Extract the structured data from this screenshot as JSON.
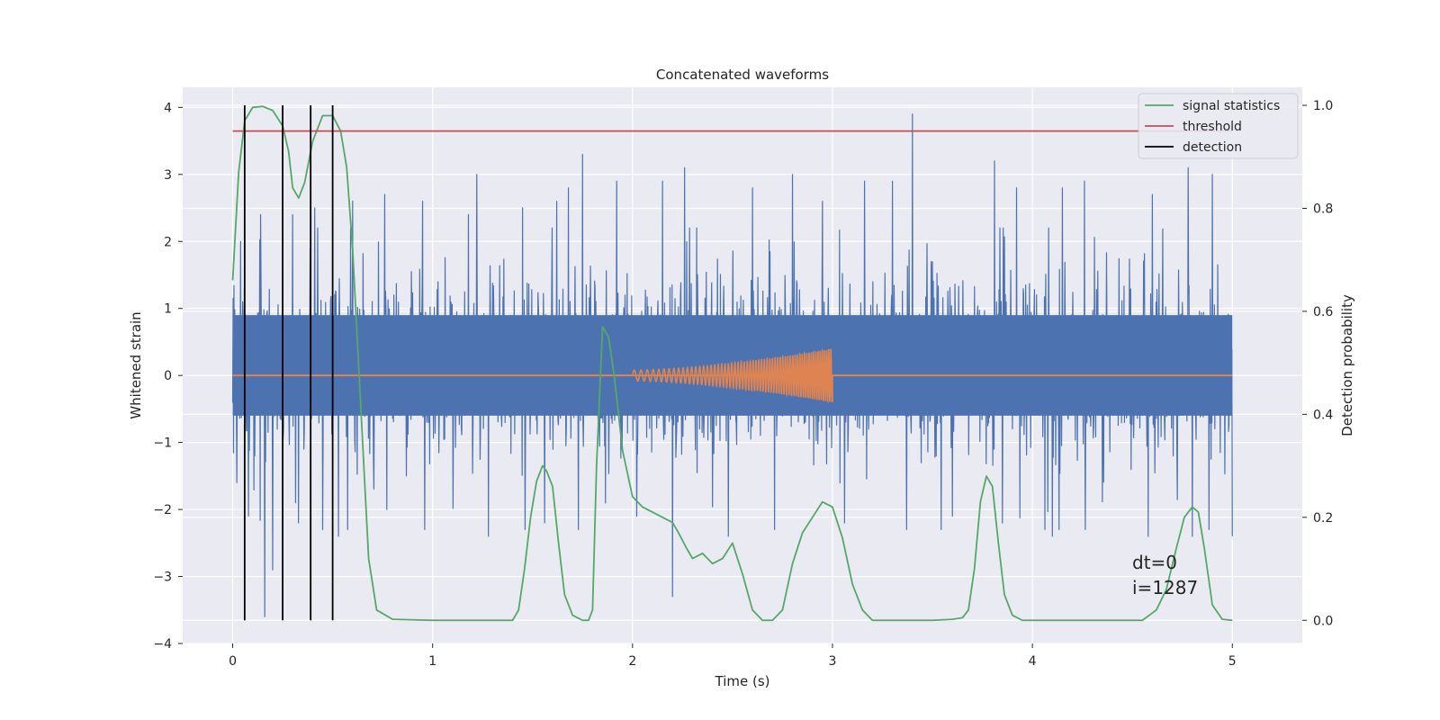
{
  "chart_data": {
    "type": "line",
    "title": "Concatenated waveforms",
    "xlabel": "Time (s)",
    "ylabel": "Whitened strain",
    "y2label": "Detection probability",
    "xlim": [
      -0.25,
      5.35
    ],
    "ylim": [
      -4,
      4.3
    ],
    "y2lim": [
      -0.045,
      1.035
    ],
    "xticks": [
      0,
      1,
      2,
      3,
      4,
      5
    ],
    "yticks": [
      -4,
      -3,
      -2,
      -1,
      0,
      1,
      2,
      3,
      4
    ],
    "y2ticks": [
      0.0,
      0.2,
      0.4,
      0.6,
      0.8,
      1.0
    ],
    "xtick_labels": [
      "0",
      "1",
      "2",
      "3",
      "4",
      "5"
    ],
    "ytick_labels": [
      "−4",
      "−3",
      "−2",
      "−1",
      "0",
      "1",
      "2",
      "3",
      "4"
    ],
    "y2tick_labels": [
      "0.0",
      "0.2",
      "0.4",
      "0.6",
      "0.8",
      "1.0"
    ],
    "grid": true,
    "legend_position": "top-right",
    "legend": [
      "signal statistics",
      "threshold",
      "detection"
    ],
    "colors": {
      "strain": "#4c72b0",
      "waveform": "#dd8452",
      "signal_statistics": "#55a868",
      "threshold": "#c44e52",
      "detection": "#000000",
      "background": "#eaeaf2",
      "grid": "#ffffff"
    },
    "series": [
      {
        "name": "signal statistics",
        "axis": "right",
        "x": [
          0.0,
          0.03,
          0.06,
          0.1,
          0.15,
          0.2,
          0.25,
          0.28,
          0.3,
          0.33,
          0.36,
          0.4,
          0.45,
          0.5,
          0.54,
          0.57,
          0.6,
          0.64,
          0.68,
          0.72,
          0.8,
          1.0,
          1.2,
          1.4,
          1.43,
          1.46,
          1.49,
          1.52,
          1.55,
          1.57,
          1.6,
          1.63,
          1.66,
          1.7,
          1.75,
          1.78,
          1.8,
          1.82,
          1.85,
          1.88,
          1.91,
          1.95,
          2.0,
          2.05,
          2.1,
          2.15,
          2.2,
          2.23,
          2.27,
          2.3,
          2.35,
          2.4,
          2.45,
          2.5,
          2.55,
          2.6,
          2.65,
          2.7,
          2.75,
          2.8,
          2.85,
          2.9,
          2.95,
          3.0,
          3.05,
          3.1,
          3.15,
          3.2,
          3.25,
          3.3,
          3.4,
          3.5,
          3.6,
          3.65,
          3.68,
          3.71,
          3.74,
          3.77,
          3.8,
          3.83,
          3.86,
          3.9,
          3.95,
          4.0,
          4.2,
          4.4,
          4.55,
          4.62,
          4.67,
          4.72,
          4.76,
          4.8,
          4.83,
          4.86,
          4.9,
          4.95,
          5.0
        ],
        "y": [
          0.66,
          0.87,
          0.97,
          0.996,
          0.998,
          0.99,
          0.96,
          0.91,
          0.84,
          0.82,
          0.85,
          0.93,
          0.98,
          0.98,
          0.95,
          0.88,
          0.72,
          0.42,
          0.12,
          0.02,
          0.002,
          0.0,
          0.0,
          0.0,
          0.02,
          0.1,
          0.2,
          0.27,
          0.3,
          0.29,
          0.26,
          0.15,
          0.05,
          0.01,
          0.0,
          0.0,
          0.02,
          0.3,
          0.57,
          0.55,
          0.47,
          0.33,
          0.24,
          0.22,
          0.21,
          0.2,
          0.19,
          0.17,
          0.14,
          0.12,
          0.13,
          0.11,
          0.12,
          0.15,
          0.09,
          0.02,
          0.0,
          0.0,
          0.02,
          0.11,
          0.17,
          0.2,
          0.23,
          0.22,
          0.16,
          0.07,
          0.02,
          0.0,
          0.0,
          0.0,
          0.0,
          0.0,
          0.002,
          0.005,
          0.02,
          0.1,
          0.23,
          0.28,
          0.26,
          0.15,
          0.05,
          0.01,
          0.0,
          0.0,
          0.0,
          0.0,
          0.0,
          0.02,
          0.06,
          0.14,
          0.2,
          0.22,
          0.21,
          0.14,
          0.03,
          0.002,
          0.0
        ]
      },
      {
        "name": "threshold",
        "axis": "right",
        "x": [
          0.0,
          5.0
        ],
        "y": [
          0.95,
          0.95
        ]
      }
    ],
    "detections": [
      0.06,
      0.25,
      0.39,
      0.5
    ],
    "strain_series": {
      "x_range": [
        0.0,
        5.0
      ],
      "dense_band": [
        -0.6,
        0.9
      ],
      "peaks": [
        {
          "x": 0.04,
          "y": 2.0
        },
        {
          "x": 0.08,
          "y": 2.3
        },
        {
          "x": 0.14,
          "y": 2.4
        },
        {
          "x": 0.3,
          "y": 2.4
        },
        {
          "x": 0.41,
          "y": 2.5
        },
        {
          "x": 0.6,
          "y": 2.6
        },
        {
          "x": 0.76,
          "y": 2.7
        },
        {
          "x": 0.95,
          "y": 2.6
        },
        {
          "x": 1.18,
          "y": 2.4
        },
        {
          "x": 1.22,
          "y": 3.0
        },
        {
          "x": 1.45,
          "y": 2.5
        },
        {
          "x": 1.62,
          "y": 2.6
        },
        {
          "x": 1.68,
          "y": 2.8
        },
        {
          "x": 1.75,
          "y": 3.3
        },
        {
          "x": 1.92,
          "y": 2.9
        },
        {
          "x": 2.15,
          "y": 2.9
        },
        {
          "x": 2.26,
          "y": 3.1
        },
        {
          "x": 2.6,
          "y": 2.8
        },
        {
          "x": 2.8,
          "y": 3.0
        },
        {
          "x": 2.95,
          "y": 2.6
        },
        {
          "x": 3.16,
          "y": 2.9
        },
        {
          "x": 3.3,
          "y": 2.9
        },
        {
          "x": 3.4,
          "y": 3.9
        },
        {
          "x": 3.6,
          "y": 3.0
        },
        {
          "x": 3.81,
          "y": 3.2
        },
        {
          "x": 3.92,
          "y": 2.8
        },
        {
          "x": 4.15,
          "y": 2.8
        },
        {
          "x": 4.26,
          "y": 2.9
        },
        {
          "x": 4.6,
          "y": 2.7
        },
        {
          "x": 4.78,
          "y": 3.1
        },
        {
          "x": 4.9,
          "y": 3.0
        },
        {
          "x": 5.0,
          "y": 2.3
        }
      ],
      "troughs": [
        {
          "x": 0.02,
          "y": -1.6
        },
        {
          "x": 0.08,
          "y": -2.1
        },
        {
          "x": 0.16,
          "y": -3.6
        },
        {
          "x": 0.2,
          "y": -2.9
        },
        {
          "x": 0.33,
          "y": -2.2
        },
        {
          "x": 0.45,
          "y": -2.3
        },
        {
          "x": 0.53,
          "y": -2.4
        },
        {
          "x": 0.77,
          "y": -2.0
        },
        {
          "x": 1.28,
          "y": -2.4
        },
        {
          "x": 1.56,
          "y": -2.2
        },
        {
          "x": 1.73,
          "y": -2.3
        },
        {
          "x": 2.02,
          "y": -2.1
        },
        {
          "x": 2.2,
          "y": -3.3
        },
        {
          "x": 2.48,
          "y": -2.4
        },
        {
          "x": 2.71,
          "y": -2.3
        },
        {
          "x": 3.06,
          "y": -2.2
        },
        {
          "x": 3.37,
          "y": -2.3
        },
        {
          "x": 3.6,
          "y": -2.1
        },
        {
          "x": 3.85,
          "y": -2.2
        },
        {
          "x": 4.1,
          "y": -2.4
        },
        {
          "x": 4.58,
          "y": -2.4
        },
        {
          "x": 4.8,
          "y": -2.4
        },
        {
          "x": 5.0,
          "y": -2.4
        }
      ]
    },
    "waveform_series": {
      "x_range": [
        2.0,
        3.0
      ],
      "amplitude_start": 0.08,
      "amplitude_end": 0.4,
      "baseline_range": [
        0.0,
        5.0
      ]
    },
    "annotations": [
      "dt=0",
      "i=1287"
    ]
  }
}
